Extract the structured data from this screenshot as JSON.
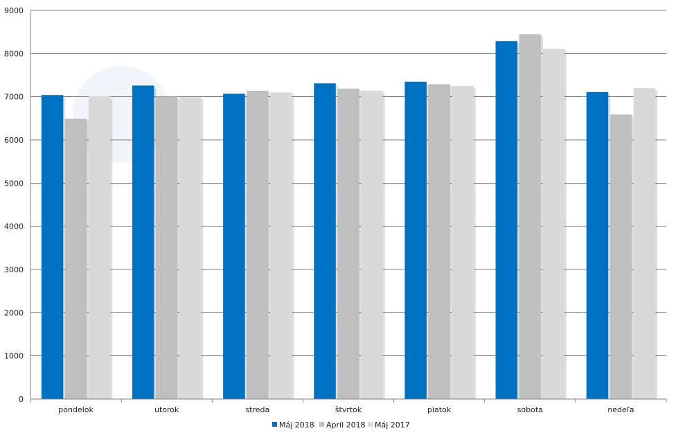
{
  "chart_data": {
    "type": "bar",
    "title": "",
    "xlabel": "",
    "ylabel": "",
    "categories": [
      "pondelok",
      "utorok",
      "streda",
      "štvrtok",
      "piatok",
      "sobota",
      "nedeľa"
    ],
    "series": [
      {
        "name": "Máj 2018",
        "color": "#0070c0",
        "values": [
          7040,
          7260,
          7070,
          7310,
          7350,
          8290,
          7110
        ]
      },
      {
        "name": "Apríl 2018",
        "color": "#bfbfbf",
        "values": [
          6490,
          7000,
          7140,
          7190,
          7290,
          8450,
          6590
        ]
      },
      {
        "name": "Máj 2017",
        "color": "#d9d9d9",
        "values": [
          7010,
          6990,
          7100,
          7140,
          7250,
          8110,
          7200
        ]
      }
    ],
    "ylim": [
      0,
      9000
    ],
    "yticks": [
      0,
      1000,
      2000,
      3000,
      4000,
      5000,
      6000,
      7000,
      8000,
      9000
    ],
    "grid": true,
    "legend_position": "bottom-center"
  }
}
